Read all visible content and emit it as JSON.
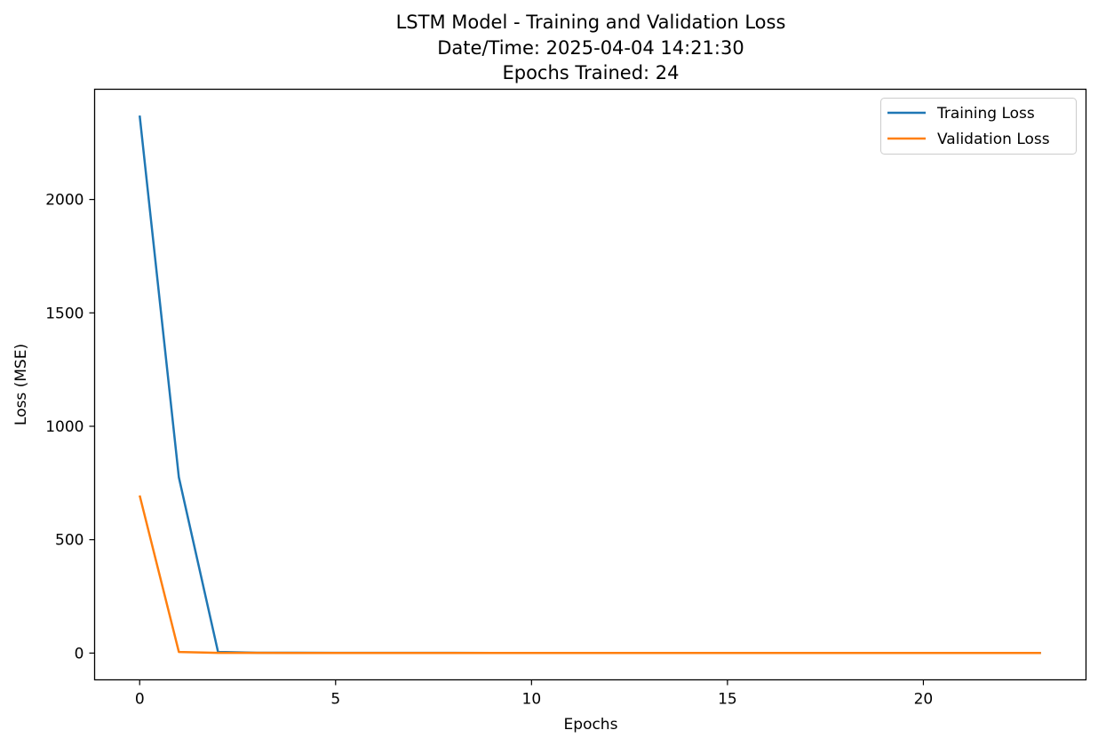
{
  "chart_data": {
    "type": "line",
    "title": [
      "LSTM Model - Training and Validation Loss",
      "Date/Time: 2025-04-04 14:21:30",
      "Epochs Trained: 24"
    ],
    "xlabel": "Epochs",
    "ylabel": "Loss (MSE)",
    "xlim": [
      -1.15,
      24.15
    ],
    "ylim": [
      -118,
      2486
    ],
    "xticks": [
      0,
      5,
      10,
      15,
      20
    ],
    "yticks": [
      0,
      500,
      1000,
      1500,
      2000
    ],
    "grid": false,
    "legend_position": "top-right",
    "x": [
      0,
      1,
      2,
      3,
      4,
      5,
      6,
      7,
      8,
      9,
      10,
      11,
      12,
      13,
      14,
      15,
      16,
      17,
      18,
      19,
      20,
      21,
      22,
      23
    ],
    "series": [
      {
        "name": "Training Loss",
        "color": "#1f77b4",
        "values": [
          2370,
          775,
          5,
          1.5,
          1.2,
          1.0,
          0.9,
          0.8,
          0.8,
          0.7,
          0.7,
          0.7,
          0.6,
          0.6,
          0.6,
          0.6,
          0.6,
          0.5,
          0.5,
          0.5,
          0.5,
          0.5,
          0.5,
          0.5
        ]
      },
      {
        "name": "Validation Loss",
        "color": "#ff7f0e",
        "values": [
          695,
          5,
          1,
          0.8,
          0.7,
          0.7,
          0.6,
          0.6,
          0.6,
          0.6,
          0.5,
          0.5,
          0.5,
          0.5,
          0.5,
          0.5,
          0.5,
          0.5,
          0.5,
          0.5,
          0.5,
          0.5,
          0.5,
          0.5
        ]
      }
    ]
  }
}
